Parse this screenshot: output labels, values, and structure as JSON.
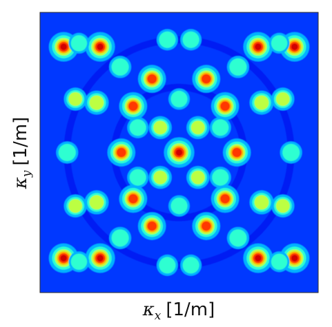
{
  "chart_data": {
    "type": "heatmap",
    "title": "",
    "xlabel": {
      "symbol": "κ",
      "subscript": "x",
      "unit": "[1/m]"
    },
    "ylabel": {
      "symbol": "κ",
      "subscript": "y",
      "unit": "[1/m]"
    },
    "ticks": "none",
    "grid": false,
    "legend": "none",
    "colormap": [
      "#00007f",
      "#0000ff",
      "#007fff",
      "#00ffff",
      "#7fff7f",
      "#ffff00",
      "#ff7f00",
      "#ff0000",
      "#7f0000"
    ],
    "background_level": 0.18,
    "peaks": [
      {
        "kx": 0.0,
        "ky": 0.0,
        "intensity": 1.0
      },
      {
        "kx": -0.67,
        "ky": 0.89,
        "intensity": 0.95
      },
      {
        "kx": 0.67,
        "ky": 0.89,
        "intensity": 0.95
      },
      {
        "kx": -0.67,
        "ky": -0.89,
        "intensity": 0.95
      },
      {
        "kx": 0.67,
        "ky": -0.89,
        "intensity": 0.95
      },
      {
        "kx": -0.49,
        "ky": 0.0,
        "intensity": 0.85
      },
      {
        "kx": 0.49,
        "ky": 0.0,
        "intensity": 0.85
      },
      {
        "kx": -0.39,
        "ky": 0.39,
        "intensity": 0.85
      },
      {
        "kx": 0.39,
        "ky": 0.39,
        "intensity": 0.85
      },
      {
        "kx": -0.39,
        "ky": -0.39,
        "intensity": 0.85
      },
      {
        "kx": 0.39,
        "ky": -0.39,
        "intensity": 0.85
      },
      {
        "kx": -0.23,
        "ky": 0.62,
        "intensity": 0.85
      },
      {
        "kx": 0.23,
        "ky": 0.62,
        "intensity": 0.85
      },
      {
        "kx": -0.23,
        "ky": -0.62,
        "intensity": 0.85
      },
      {
        "kx": 0.23,
        "ky": -0.62,
        "intensity": 0.85
      },
      {
        "kx": -0.98,
        "ky": 0.89,
        "intensity": 0.95
      },
      {
        "kx": 0.98,
        "ky": 0.89,
        "intensity": 0.95
      },
      {
        "kx": -0.98,
        "ky": -0.89,
        "intensity": 0.95
      },
      {
        "kx": 0.98,
        "ky": -0.89,
        "intensity": 0.95
      },
      {
        "kx": -0.16,
        "ky": 0.21,
        "intensity": 0.55
      },
      {
        "kx": 0.16,
        "ky": 0.21,
        "intensity": 0.55
      },
      {
        "kx": -0.16,
        "ky": -0.21,
        "intensity": 0.55
      },
      {
        "kx": 0.16,
        "ky": -0.21,
        "intensity": 0.55
      },
      {
        "kx": -0.35,
        "ky": 0.21,
        "intensity": 0.45
      },
      {
        "kx": 0.35,
        "ky": 0.21,
        "intensity": 0.45
      },
      {
        "kx": -0.35,
        "ky": -0.21,
        "intensity": 0.45
      },
      {
        "kx": 0.35,
        "ky": -0.21,
        "intensity": 0.45
      },
      {
        "kx": 0.0,
        "ky": 0.45,
        "intensity": 0.45
      },
      {
        "kx": 0.0,
        "ky": -0.45,
        "intensity": 0.45
      },
      {
        "kx": -0.7,
        "ky": 0.42,
        "intensity": 0.62
      },
      {
        "kx": 0.7,
        "ky": 0.42,
        "intensity": 0.62
      },
      {
        "kx": -0.7,
        "ky": -0.42,
        "intensity": 0.62
      },
      {
        "kx": 0.7,
        "ky": -0.42,
        "intensity": 0.62
      },
      {
        "kx": -0.95,
        "ky": 0.0,
        "intensity": 0.5
      },
      {
        "kx": 0.95,
        "ky": 0.0,
        "intensity": 0.5
      },
      {
        "kx": -0.5,
        "ky": 0.72,
        "intensity": 0.5
      },
      {
        "kx": 0.5,
        "ky": 0.72,
        "intensity": 0.5
      },
      {
        "kx": -0.5,
        "ky": -0.72,
        "intensity": 0.5
      },
      {
        "kx": 0.5,
        "ky": -0.72,
        "intensity": 0.5
      },
      {
        "kx": -0.88,
        "ky": 0.45,
        "intensity": 0.55
      },
      {
        "kx": 0.88,
        "ky": 0.45,
        "intensity": 0.55
      },
      {
        "kx": -0.88,
        "ky": -0.45,
        "intensity": 0.55
      },
      {
        "kx": 0.88,
        "ky": -0.45,
        "intensity": 0.55
      },
      {
        "kx": -0.1,
        "ky": 0.95,
        "intensity": 0.45
      },
      {
        "kx": 0.1,
        "ky": 0.95,
        "intensity": 0.45
      },
      {
        "kx": -0.1,
        "ky": -0.95,
        "intensity": 0.45
      },
      {
        "kx": 0.1,
        "ky": -0.95,
        "intensity": 0.45
      },
      {
        "kx": -0.85,
        "ky": 0.92,
        "intensity": 0.42
      },
      {
        "kx": 0.85,
        "ky": 0.92,
        "intensity": 0.42
      },
      {
        "kx": -0.85,
        "ky": -0.92,
        "intensity": 0.42
      },
      {
        "kx": 0.85,
        "ky": -0.92,
        "intensity": 0.42
      }
    ]
  }
}
